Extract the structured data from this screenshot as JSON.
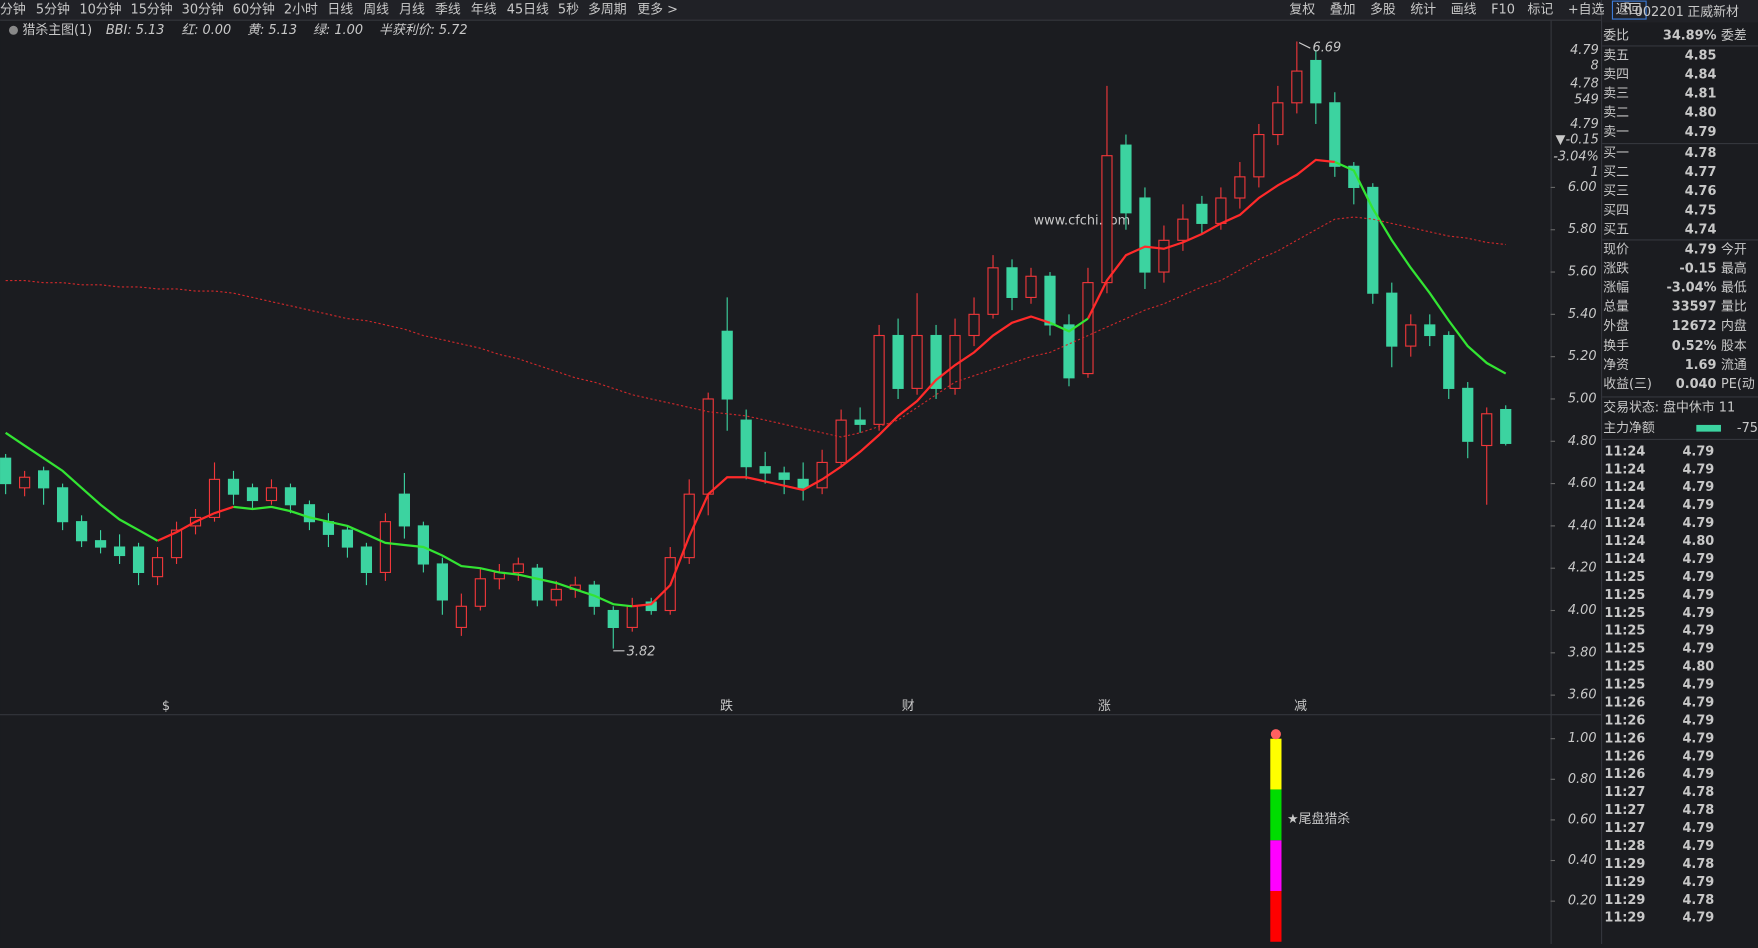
{
  "menu": {
    "periods": [
      "分钟",
      "5分钟",
      "10分钟",
      "15分钟",
      "30分钟",
      "60分钟",
      "2小时",
      "日线",
      "周线",
      "月线",
      "季线",
      "年线",
      "45日线",
      "5秒",
      "多周期",
      "更多 >"
    ],
    "tools": [
      "复权",
      "叠加",
      "多股",
      "统计",
      "画线",
      "F10",
      "标记",
      "+自选",
      "返回"
    ]
  },
  "indicator": {
    "name": "猎杀主图(1)",
    "items": [
      {
        "text": "BBI: 5.13",
        "color": "#d8d8d8"
      },
      {
        "text": "红: 0.00",
        "color": "#d8d8d8"
      },
      {
        "text": "黄: 5.13",
        "color": "#e03a3a"
      },
      {
        "text": "绿: 1.00",
        "color": "#5b8def"
      },
      {
        "text": "半获利价: 5.72",
        "color": "#e03a3a"
      }
    ]
  },
  "axis_info": [
    {
      "text": "4.79",
      "color": "#d8d8d8"
    },
    {
      "text": "8",
      "color": "#d8d8d8"
    },
    {
      "text": "4.78",
      "color": "#d8d8d8"
    },
    {
      "text": "549",
      "color": "#d8d8d8"
    },
    {
      "text": "4.79",
      "color": "#3cd3a0"
    },
    {
      "text": "▼-0.15",
      "color": "#5b8def"
    },
    {
      "text": "-3.04%",
      "color": "#5b8def"
    },
    {
      "text": "1",
      "color": "#e03a3a"
    }
  ],
  "chart_data": [
    {
      "type": "candlestick",
      "up_color": "#f0373a",
      "down_color": "#3cd3a0",
      "watermark": "www.cfchi.com",
      "ylim": [
        3.51,
        6.78
      ],
      "yticks": [
        {
          "value": 6,
          "label": "6.00"
        },
        {
          "value": 5.8,
          "label": "5.80"
        },
        {
          "value": 5.6,
          "label": "5.60"
        },
        {
          "value": 5.4,
          "label": "5.40"
        },
        {
          "value": 5.2,
          "label": "5.20"
        },
        {
          "value": 5,
          "label": "5.00"
        },
        {
          "value": 4.8,
          "label": "4.80"
        },
        {
          "value": 4.6,
          "label": "4.60"
        },
        {
          "value": 4.4,
          "label": "4.40"
        },
        {
          "value": 4.2,
          "label": "4.20"
        },
        {
          "value": 4,
          "label": "4.00"
        },
        {
          "value": 3.8,
          "label": "3.80"
        },
        {
          "value": 3.6,
          "label": "3.60"
        }
      ],
      "max_label": 6.69,
      "min_label": 3.82,
      "candles": [
        [
          4.72,
          4.74,
          4.55,
          4.6
        ],
        [
          4.58,
          4.66,
          4.54,
          4.63
        ],
        [
          4.66,
          4.68,
          4.5,
          4.58
        ],
        [
          4.58,
          4.6,
          4.38,
          4.42
        ],
        [
          4.42,
          4.45,
          4.3,
          4.33
        ],
        [
          4.33,
          4.38,
          4.27,
          4.3
        ],
        [
          4.3,
          4.36,
          4.22,
          4.26
        ],
        [
          4.3,
          4.32,
          4.12,
          4.18
        ],
        [
          4.16,
          4.3,
          4.12,
          4.25
        ],
        [
          4.25,
          4.42,
          4.22,
          4.38
        ],
        [
          4.4,
          4.48,
          4.36,
          4.44
        ],
        [
          4.44,
          4.7,
          4.42,
          4.62
        ],
        [
          4.62,
          4.66,
          4.5,
          4.55
        ],
        [
          4.58,
          4.6,
          4.48,
          4.52
        ],
        [
          4.52,
          4.62,
          4.5,
          4.58
        ],
        [
          4.58,
          4.6,
          4.46,
          4.5
        ],
        [
          4.5,
          4.52,
          4.38,
          4.42
        ],
        [
          4.42,
          4.46,
          4.3,
          4.36
        ],
        [
          4.38,
          4.4,
          4.25,
          4.3
        ],
        [
          4.3,
          4.32,
          4.12,
          4.18
        ],
        [
          4.18,
          4.46,
          4.14,
          4.42
        ],
        [
          4.55,
          4.65,
          4.34,
          4.4
        ],
        [
          4.4,
          4.42,
          4.18,
          4.22
        ],
        [
          4.22,
          4.25,
          3.98,
          4.05
        ],
        [
          3.92,
          4.08,
          3.88,
          4.02
        ],
        [
          4.02,
          4.2,
          4.0,
          4.15
        ],
        [
          4.15,
          4.22,
          4.1,
          4.18
        ],
        [
          4.18,
          4.25,
          4.14,
          4.22
        ],
        [
          4.2,
          4.22,
          4.02,
          4.05
        ],
        [
          4.05,
          4.14,
          4.02,
          4.1
        ],
        [
          4.1,
          4.16,
          4.06,
          4.12
        ],
        [
          4.12,
          4.14,
          3.98,
          4.02
        ],
        [
          4.0,
          4.02,
          3.82,
          3.92
        ],
        [
          3.92,
          4.06,
          3.9,
          4.02
        ],
        [
          4.04,
          4.06,
          3.98,
          4.0
        ],
        [
          4.0,
          4.3,
          3.98,
          4.25
        ],
        [
          4.25,
          4.62,
          4.22,
          4.55
        ],
        [
          4.55,
          5.03,
          4.45,
          5.0
        ],
        [
          5.32,
          5.48,
          4.85,
          5.0
        ],
        [
          4.9,
          4.95,
          4.62,
          4.68
        ],
        [
          4.68,
          4.75,
          4.6,
          4.65
        ],
        [
          4.65,
          4.68,
          4.55,
          4.62
        ],
        [
          4.62,
          4.7,
          4.52,
          4.58
        ],
        [
          4.58,
          4.76,
          4.55,
          4.7
        ],
        [
          4.7,
          4.95,
          4.68,
          4.9
        ],
        [
          4.9,
          4.96,
          4.84,
          4.88
        ],
        [
          4.88,
          5.35,
          4.85,
          5.3
        ],
        [
          5.3,
          5.38,
          5.0,
          5.05
        ],
        [
          5.05,
          5.5,
          5.02,
          5.3
        ],
        [
          5.3,
          5.35,
          5.0,
          5.05
        ],
        [
          5.05,
          5.38,
          5.02,
          5.3
        ],
        [
          5.3,
          5.48,
          5.25,
          5.4
        ],
        [
          5.4,
          5.68,
          5.38,
          5.62
        ],
        [
          5.62,
          5.66,
          5.42,
          5.48
        ],
        [
          5.48,
          5.62,
          5.45,
          5.58
        ],
        [
          5.58,
          5.6,
          5.3,
          5.35
        ],
        [
          5.35,
          5.4,
          5.06,
          5.1
        ],
        [
          5.12,
          5.62,
          5.1,
          5.55
        ],
        [
          5.55,
          6.48,
          5.5,
          6.15
        ],
        [
          6.2,
          6.25,
          5.8,
          5.88
        ],
        [
          5.95,
          6.0,
          5.52,
          5.6
        ],
        [
          5.6,
          5.82,
          5.55,
          5.75
        ],
        [
          5.75,
          5.92,
          5.7,
          5.85
        ],
        [
          5.92,
          5.96,
          5.78,
          5.83
        ],
        [
          5.83,
          6.0,
          5.8,
          5.95
        ],
        [
          5.95,
          6.12,
          5.9,
          6.05
        ],
        [
          6.05,
          6.3,
          6.0,
          6.25
        ],
        [
          6.25,
          6.48,
          6.2,
          6.4
        ],
        [
          6.4,
          6.69,
          6.35,
          6.55
        ],
        [
          6.6,
          6.65,
          6.3,
          6.4
        ],
        [
          6.4,
          6.45,
          6.05,
          6.1
        ],
        [
          6.1,
          6.12,
          5.92,
          6.0
        ],
        [
          6.0,
          6.02,
          5.45,
          5.5
        ],
        [
          5.5,
          5.55,
          5.15,
          5.25
        ],
        [
          5.25,
          5.4,
          5.2,
          5.35
        ],
        [
          5.35,
          5.4,
          5.25,
          5.3
        ],
        [
          5.3,
          5.32,
          5.0,
          5.05
        ],
        [
          5.05,
          5.08,
          4.72,
          4.8
        ],
        [
          4.78,
          4.96,
          4.5,
          4.93
        ],
        [
          4.95,
          4.97,
          4.78,
          4.79
        ]
      ],
      "series": [
        {
          "color": "#ff2a2a",
          "style": "solid",
          "values": [
            null,
            null,
            null,
            null,
            null,
            null,
            null,
            null,
            4.33,
            4.37,
            4.42,
            4.46,
            4.49,
            null,
            null,
            null,
            null,
            null,
            null,
            null,
            null,
            null,
            null,
            null,
            null,
            null,
            null,
            null,
            null,
            null,
            null,
            null,
            null,
            4.02,
            4.03,
            4.12,
            4.35,
            4.55,
            4.63,
            4.63,
            4.61,
            4.59,
            4.57,
            4.62,
            4.68,
            4.75,
            4.83,
            4.92,
            4.99,
            5.09,
            5.16,
            5.22,
            5.3,
            5.36,
            5.39,
            5.36,
            null,
            5.38,
            5.56,
            5.68,
            5.72,
            5.71,
            5.74,
            5.78,
            5.83,
            5.87,
            5.95,
            6.01,
            6.06,
            6.13,
            6.12,
            null,
            null,
            null,
            null,
            null,
            null,
            null,
            null,
            null
          ]
        },
        {
          "color": "#33e433",
          "style": "solid",
          "values": [
            4.84,
            4.78,
            4.72,
            4.66,
            4.58,
            4.5,
            4.43,
            4.38,
            4.33,
            null,
            null,
            null,
            4.49,
            4.48,
            4.49,
            4.47,
            4.44,
            4.42,
            4.4,
            4.36,
            4.32,
            4.31,
            4.3,
            4.26,
            4.21,
            4.2,
            4.18,
            4.17,
            4.15,
            4.13,
            4.1,
            4.07,
            4.03,
            4.02,
            null,
            null,
            null,
            null,
            null,
            null,
            null,
            null,
            null,
            null,
            null,
            null,
            null,
            null,
            null,
            null,
            null,
            null,
            null,
            null,
            null,
            5.36,
            5.32,
            5.38,
            null,
            null,
            null,
            null,
            null,
            null,
            null,
            null,
            null,
            null,
            null,
            null,
            6.12,
            6.08,
            5.9,
            5.75,
            5.62,
            5.5,
            5.37,
            5.25,
            5.17,
            5.12
          ]
        },
        {
          "color": "#d0282a",
          "style": "dashed",
          "values": [
            5.56,
            5.56,
            5.55,
            5.55,
            5.54,
            5.54,
            5.53,
            5.53,
            5.52,
            5.52,
            5.51,
            5.51,
            5.5,
            5.48,
            5.46,
            5.44,
            5.42,
            5.4,
            5.38,
            5.37,
            5.35,
            5.33,
            5.3,
            5.28,
            5.26,
            5.24,
            5.21,
            5.19,
            5.16,
            5.13,
            5.1,
            5.08,
            5.05,
            5.02,
            5.0,
            4.98,
            4.96,
            4.94,
            4.93,
            4.92,
            4.9,
            4.88,
            4.86,
            4.84,
            4.82,
            4.84,
            4.87,
            4.9,
            4.96,
            5.02,
            5.08,
            5.11,
            5.14,
            5.17,
            5.2,
            5.22,
            5.26,
            5.3,
            5.34,
            5.38,
            5.42,
            5.45,
            5.49,
            5.53,
            5.56,
            5.61,
            5.66,
            5.7,
            5.75,
            5.8,
            5.85,
            5.86,
            5.85,
            5.83,
            5.81,
            5.79,
            5.77,
            5.76,
            5.74,
            5.73
          ]
        }
      ],
      "event_labels": [
        {
          "text": "$",
          "color": "#e03030"
        },
        {
          "text": "跌",
          "color": "#3cd3a0"
        },
        {
          "text": "财",
          "color": "#5b8def"
        },
        {
          "text": "涨",
          "color": "#e03030"
        },
        {
          "text": "减",
          "color": "#3cd3a0"
        }
      ]
    },
    {
      "type": "stacked-bar",
      "ylim": [
        0,
        1.06
      ],
      "yticks": [
        {
          "value": 1,
          "label": "1.00"
        },
        {
          "value": 0.8,
          "label": "0.80"
        },
        {
          "value": 0.6,
          "label": "0.60"
        },
        {
          "value": 0.4,
          "label": "0.40"
        },
        {
          "value": 0.2,
          "label": "0.20"
        }
      ],
      "series": [
        {
          "color": "#ff0000",
          "values": [
            0.25
          ]
        },
        {
          "color": "#ff00ff",
          "values": [
            0.25
          ]
        },
        {
          "color": "#00dd00",
          "values": [
            0.25
          ]
        },
        {
          "color": "#ffff00",
          "values": [
            0.25
          ]
        }
      ],
      "annotation": "★尾盘猎杀"
    }
  ],
  "quote_panel": {
    "flag": "R",
    "code": "002201",
    "name": "正威新材",
    "ratio": {
      "label": "委比",
      "value": "34.89%",
      "label2": "委差"
    },
    "asks": [
      {
        "label": "卖五",
        "price": "4.85"
      },
      {
        "label": "卖四",
        "price": "4.84"
      },
      {
        "label": "卖三",
        "price": "4.81"
      },
      {
        "label": "卖二",
        "price": "4.80"
      },
      {
        "label": "卖一",
        "price": "4.79"
      }
    ],
    "bids": [
      {
        "label": "买一",
        "price": "4.78"
      },
      {
        "label": "买二",
        "price": "4.77"
      },
      {
        "label": "买三",
        "price": "4.76"
      },
      {
        "label": "买四",
        "price": "4.75"
      },
      {
        "label": "买五",
        "price": "4.74"
      }
    ],
    "stats": [
      {
        "label": "现价",
        "value": "4.79",
        "label2": "今开",
        "color": "#3cd3a0"
      },
      {
        "label": "涨跌",
        "value": "-0.15",
        "label2": "最高",
        "color": "#3cd3a0"
      },
      {
        "label": "涨幅",
        "value": "-3.04%",
        "label2": "最低",
        "color": "#3cd3a0"
      },
      {
        "label": "总量",
        "value": "33597",
        "label2": "量比",
        "color": "#e0e0e0"
      },
      {
        "label": "外盘",
        "value": "12672",
        "label2": "内盘",
        "color": "#f0373a"
      },
      {
        "label": "换手",
        "value": "0.52%",
        "label2": "股本",
        "color": "#e0e0e0"
      },
      {
        "label": "净资",
        "value": "1.69",
        "label2": "流通",
        "color": "#e0e0e0"
      },
      {
        "label": "收益(三)",
        "value": "0.040",
        "label2": "PE(动",
        "color": "#e0e0e0"
      }
    ],
    "status": "交易状态: 盘中休市 11",
    "main_flow": {
      "label": "主力净额",
      "value": "-75"
    },
    "ticks": [
      [
        "11:24",
        "4.79"
      ],
      [
        "11:24",
        "4.79"
      ],
      [
        "11:24",
        "4.79"
      ],
      [
        "11:24",
        "4.79"
      ],
      [
        "11:24",
        "4.79"
      ],
      [
        "11:24",
        "4.80"
      ],
      [
        "11:24",
        "4.79"
      ],
      [
        "11:25",
        "4.79"
      ],
      [
        "11:25",
        "4.79"
      ],
      [
        "11:25",
        "4.79"
      ],
      [
        "11:25",
        "4.79"
      ],
      [
        "11:25",
        "4.79"
      ],
      [
        "11:25",
        "4.80"
      ],
      [
        "11:25",
        "4.79"
      ],
      [
        "11:26",
        "4.79"
      ],
      [
        "11:26",
        "4.79"
      ],
      [
        "11:26",
        "4.79"
      ],
      [
        "11:26",
        "4.79"
      ],
      [
        "11:26",
        "4.79"
      ],
      [
        "11:27",
        "4.78"
      ],
      [
        "11:27",
        "4.78"
      ],
      [
        "11:27",
        "4.79"
      ],
      [
        "11:28",
        "4.79"
      ],
      [
        "11:29",
        "4.78"
      ],
      [
        "11:29",
        "4.79"
      ],
      [
        "11:29",
        "4.78"
      ],
      [
        "11:29",
        "4.79"
      ]
    ]
  }
}
